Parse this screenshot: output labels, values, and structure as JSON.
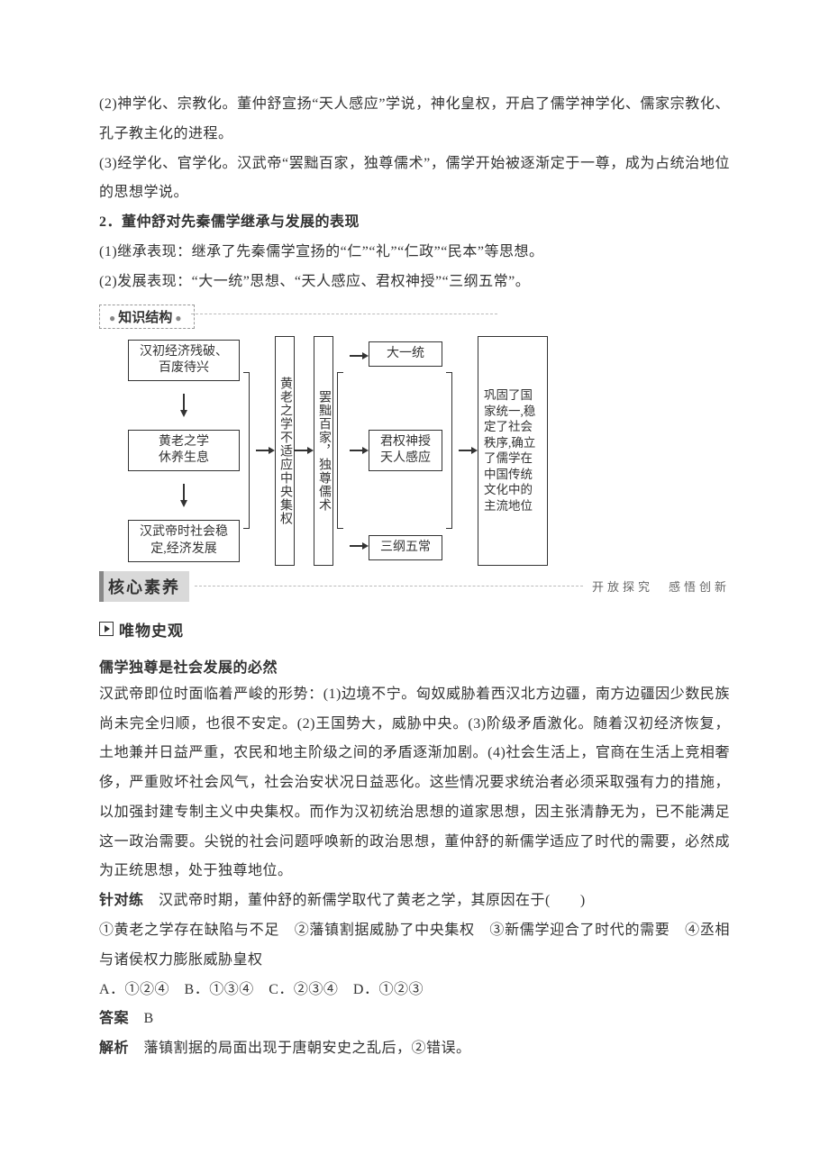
{
  "para1": "(2)神学化、宗教化。董仲舒宣扬“天人感应”学说，神化皇权，开启了儒学神学化、儒家宗教化、孔子教主化的进程。",
  "para2": "(3)经学化、官学化。汉武帝“罢黜百家，独尊儒术”，儒学开始被逐渐定于一尊，成为占统治地位的思想学说。",
  "h2": "2．董仲舒对先秦儒学继承与发展的表现",
  "para3": "(1)继承表现：继承了先秦儒学宣扬的“仁”“礼”“仁政”“民本”等思想。",
  "para4": "(2)发展表现：“大一统”思想、“天人感应、君权神授”“三纲五常”。",
  "structure_label": "知识结构",
  "diagram": {
    "col1": {
      "n1": "汉初经济残破、百废待兴",
      "n2": "黄老之学\n休养生息",
      "n3": "汉武帝时社会稳定,经济发展"
    },
    "vert1": "黄老之学不适应中央集权",
    "vert2": "罢黜百家，独尊儒术",
    "col3": {
      "n1": "大一统",
      "n2": "君权神授\n天人感应",
      "n3": "三纲五常"
    },
    "col5": "巩固了国家统一,稳定了社会秩序,确立了儒学在中国传统文化中的主流地位"
  },
  "core_section": {
    "title": "核心素养",
    "subtitle": "开放探究　感悟创新"
  },
  "sub_heading": "唯物史观",
  "topic": "儒学独尊是社会发展的必然",
  "body": "汉武帝即位时面临着严峻的形势：(1)边境不宁。匈奴威胁着西汉北方边疆，南方边疆因少数民族尚未完全归顺，也很不安定。(2)王国势大，威胁中央。(3)阶级矛盾激化。随着汉初经济恢复，土地兼并日益严重，农民和地主阶级之间的矛盾逐渐加剧。(4)社会生活上，官商在生活上竞相奢侈，严重败坏社会风气，社会治安状况日益恶化。这些情况要求统治者必须采取强有力的措施，以加强封建专制主义中央集权。而作为汉初统治思想的道家思想，因主张清静无为，已不能满足这一政治需要。尖锐的社会问题呼唤新的政治思想，董仲舒的新儒学适应了时代的需要，必然成为正统思想，处于独尊地位。",
  "question": {
    "stem_prefix": "针对练",
    "stem": "　汉武帝时期，董仲舒的新儒学取代了黄老之学，其原因在于(　　)",
    "options_line": "①黄老之学存在缺陷与不足　②藩镇割据威胁了中央集权　③新儒学迎合了时代的需要　④丞相与诸侯权力膨胀威胁皇权",
    "choices": "A．①②④　B．①③④　C．②③④　D．①②③",
    "answer_label": "答案",
    "answer": "B",
    "explain_label": "解析",
    "explain": "藩镇割据的局面出现于唐朝安史之乱后，②错误。"
  }
}
